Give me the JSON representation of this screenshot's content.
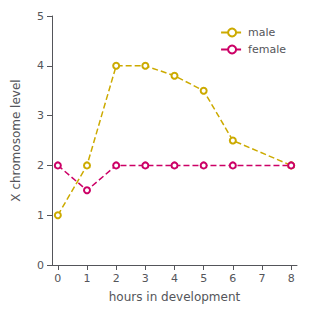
{
  "chart_data": {
    "type": "line",
    "x": [
      0,
      1,
      2,
      3,
      4,
      5,
      6,
      8
    ],
    "series": [
      {
        "name": "male",
        "color": "#ccaa00",
        "values": [
          1.0,
          2.0,
          4.0,
          4.0,
          3.8,
          3.5,
          2.5,
          2.0
        ]
      },
      {
        "name": "female",
        "color": "#cc0066",
        "values": [
          2.0,
          1.5,
          2.0,
          2.0,
          2.0,
          2.0,
          2.0,
          2.0
        ]
      }
    ],
    "xlabel": "hours in development",
    "ylabel": "X chromosome level",
    "xlim": [
      -0.2,
      8.2
    ],
    "ylim": [
      0,
      5
    ],
    "xticks": [
      0,
      1,
      2,
      3,
      4,
      5,
      6,
      7,
      8
    ],
    "yticks": [
      0,
      1,
      2,
      3,
      4,
      5
    ],
    "grid": false,
    "legend": "upper right",
    "marker": "circle",
    "line_style": "dashed"
  }
}
